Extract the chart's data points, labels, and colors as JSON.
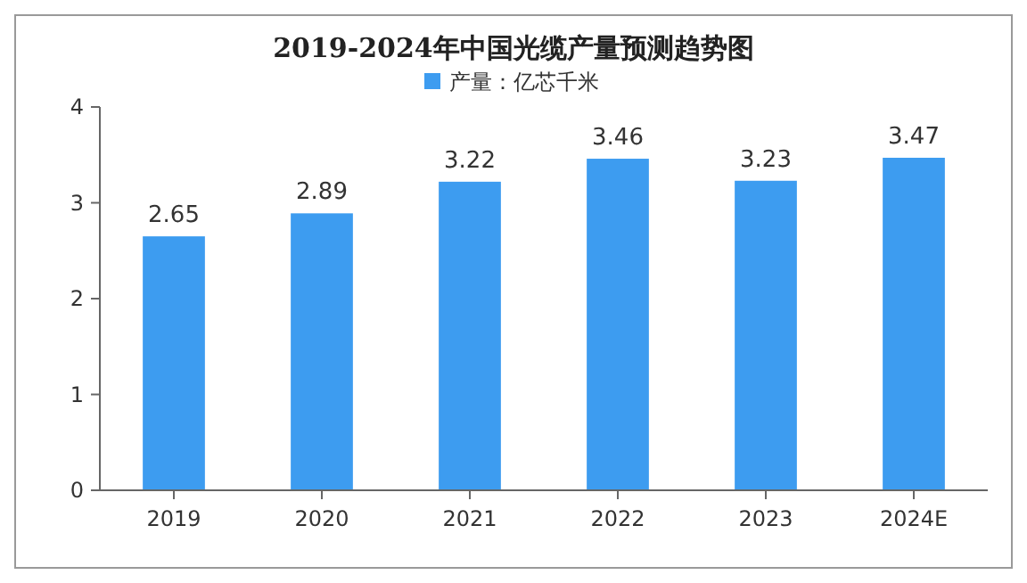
{
  "chart_data": {
    "type": "bar",
    "title": "2019-2024年中国光缆产量预测趋势图",
    "categories": [
      "2019",
      "2020",
      "2021",
      "2022",
      "2023",
      "2024E"
    ],
    "series": [
      {
        "name": "产量：亿芯千米",
        "color": "#3d9cf0",
        "values": [
          2.65,
          2.89,
          3.22,
          3.46,
          3.23,
          3.47
        ]
      }
    ],
    "ylim": [
      0,
      4
    ],
    "yticks": [
      0,
      1,
      2,
      3,
      4
    ],
    "data_labels": true,
    "legend": "top",
    "grid": false
  }
}
